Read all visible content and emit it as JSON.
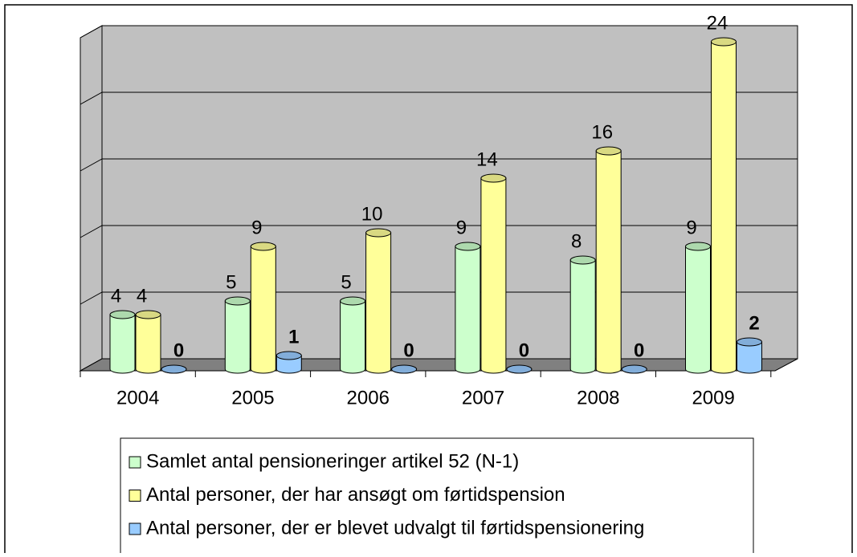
{
  "chart_data": {
    "type": "bar",
    "categories": [
      "2004",
      "2005",
      "2006",
      "2007",
      "2008",
      "2009"
    ],
    "series": [
      {
        "name": "Samlet antal pensioneringer artikel 52 (N-1)",
        "color": "#ccffcc",
        "values": [
          4,
          5,
          5,
          9,
          8,
          9
        ]
      },
      {
        "name": "Antal personer, der har ansøgt om førtidspension",
        "color": "#ffff99",
        "values": [
          4,
          9,
          10,
          14,
          16,
          24
        ]
      },
      {
        "name": "Antal personer, der er blevet udvalgt til førtidspensionering",
        "color": "#99ccff",
        "values": [
          0,
          1,
          0,
          0,
          0,
          2
        ]
      }
    ],
    "ylim": [
      0,
      25
    ],
    "yticks": [
      0,
      5,
      10,
      15,
      20,
      25
    ],
    "grid": true,
    "legend": "bottom"
  }
}
